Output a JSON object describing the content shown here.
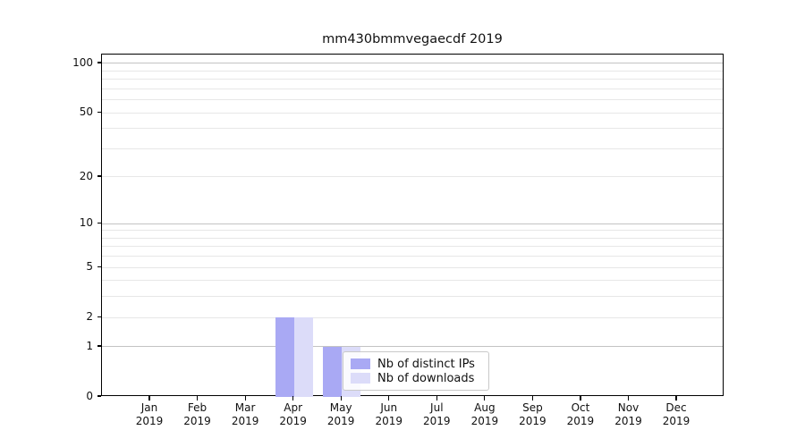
{
  "title": "mm430bmmvegaecdf 2019",
  "chart_data": {
    "type": "bar",
    "categories": [
      {
        "month": "Jan",
        "year": "2019"
      },
      {
        "month": "Feb",
        "year": "2019"
      },
      {
        "month": "Mar",
        "year": "2019"
      },
      {
        "month": "Apr",
        "year": "2019"
      },
      {
        "month": "May",
        "year": "2019"
      },
      {
        "month": "Jun",
        "year": "2019"
      },
      {
        "month": "Jul",
        "year": "2019"
      },
      {
        "month": "Aug",
        "year": "2019"
      },
      {
        "month": "Sep",
        "year": "2019"
      },
      {
        "month": "Oct",
        "year": "2019"
      },
      {
        "month": "Nov",
        "year": "2019"
      },
      {
        "month": "Dec",
        "year": "2019"
      }
    ],
    "series": [
      {
        "name": "Nb of distinct IPs",
        "color": "#a9a9f4",
        "values": [
          0,
          0,
          0,
          2,
          1,
          0,
          0,
          0,
          0,
          0,
          0,
          0
        ]
      },
      {
        "name": "Nb of downloads",
        "color": "#dcdcf9",
        "values": [
          0,
          0,
          0,
          2,
          1,
          0,
          0,
          0,
          0,
          0,
          0,
          0
        ]
      }
    ],
    "title": "mm430bmmvegaecdf 2019",
    "xlabel": "",
    "ylabel": "",
    "yscale": "log1p",
    "ylim": [
      0,
      113.3
    ],
    "yticks": [
      {
        "label": "0",
        "value": 0
      },
      {
        "label": "1",
        "value": 1
      },
      {
        "label": "2",
        "value": 2
      },
      {
        "label": "5",
        "value": 5
      },
      {
        "label": "10",
        "value": 10
      },
      {
        "label": "20",
        "value": 20
      },
      {
        "label": "50",
        "value": 50
      },
      {
        "label": "100",
        "value": 100
      }
    ],
    "major_grid_values": [
      1,
      10,
      100
    ],
    "minor_grid_values": [
      2,
      3,
      4,
      5,
      6,
      7,
      8,
      9,
      20,
      30,
      40,
      50,
      60,
      70,
      80,
      90
    ],
    "grid": "horizontal",
    "legend_position": "lower-center",
    "colors": {
      "bar_distinct_ips": "#a9a9f4",
      "bar_downloads": "#dcdcf9",
      "major_grid": "#c3c3c3",
      "minor_grid": "#e7e7e7",
      "axis": "#000000"
    }
  }
}
